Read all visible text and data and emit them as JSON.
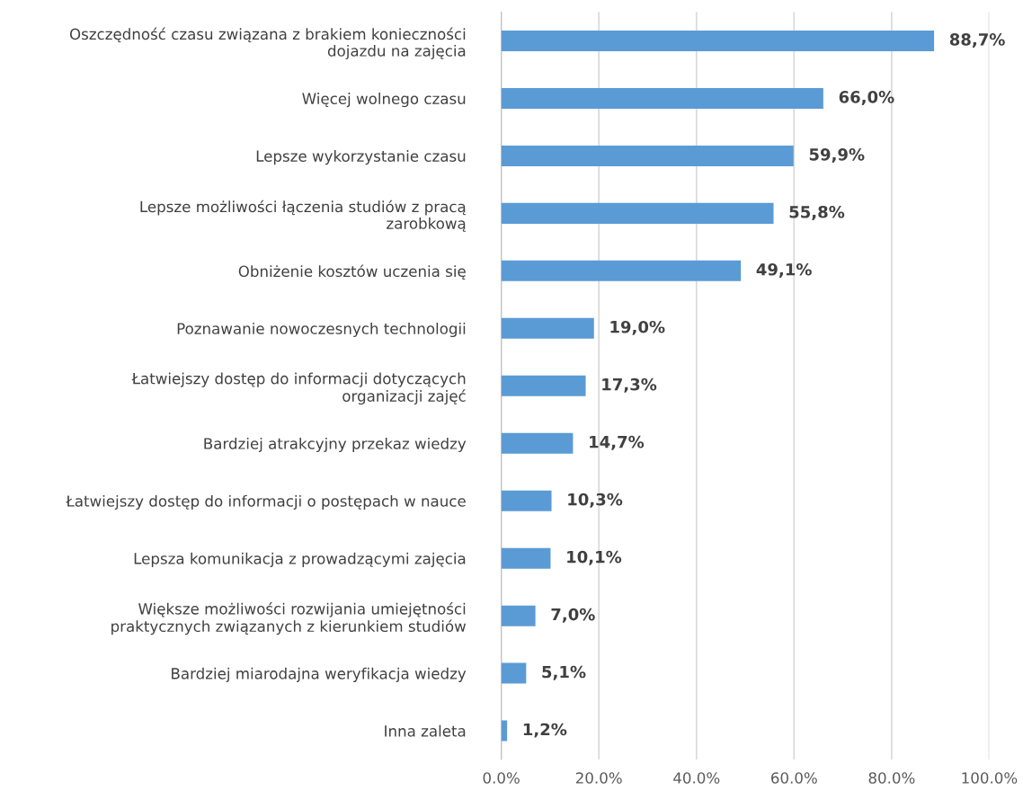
{
  "chart_data": {
    "type": "bar",
    "orientation": "horizontal",
    "categories": [
      "Oszczędność czasu związana z brakiem konieczności\ndojazdu na zajęcia",
      "Więcej wolnego czasu",
      "Lepsze wykorzystanie czasu",
      "Lepsze możliwości łączenia studiów z pracą\nzarobkową",
      "Obniżenie kosztów uczenia się",
      "Poznawanie nowoczesnych technologii",
      "Łatwiejszy dostęp do informacji dotyczących\norganizacji zajęć",
      "Bardziej atrakcyjny przekaz wiedzy",
      "Łatwiejszy dostęp do informacji o postępach w nauce",
      "Lepsza komunikacja z prowadzącymi zajęcia",
      "Większe możliwości rozwijania umiejętności\npraktycznych związanych z kierunkiem studiów",
      "Bardziej miarodajna weryfikacja wiedzy",
      "Inna zaleta"
    ],
    "values": [
      88.7,
      66.0,
      59.9,
      55.8,
      49.1,
      19.0,
      17.3,
      14.7,
      10.3,
      10.1,
      7.0,
      5.1,
      1.2
    ],
    "value_labels": [
      "88,7%",
      "66,0%",
      "59,9%",
      "55,8%",
      "49,1%",
      "19,0%",
      "17,3%",
      "14,7%",
      "10,3%",
      "10,1%",
      "7,0%",
      "5,1%",
      "1,2%"
    ],
    "color": "#5b9bd5",
    "xlim": [
      0,
      100
    ],
    "xticks": [
      {
        "value": 0,
        "label": "0.0%"
      },
      {
        "value": 20,
        "label": "20.0%"
      },
      {
        "value": 40,
        "label": "40.0%"
      },
      {
        "value": 60,
        "label": "60.0%"
      },
      {
        "value": 80,
        "label": "80.0%"
      },
      {
        "value": 100,
        "label": "100.0%"
      }
    ],
    "grid": "x",
    "legend": false
  }
}
